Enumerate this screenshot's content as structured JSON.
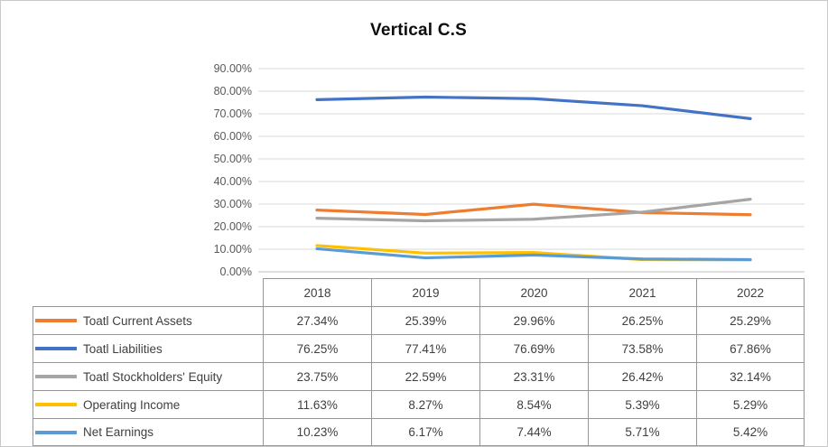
{
  "chart_data": {
    "type": "line",
    "title": "Vertical C.S",
    "categories": [
      "2018",
      "2019",
      "2020",
      "2021",
      "2022"
    ],
    "series": [
      {
        "name": "Toatl Current Assets",
        "color": "#ED7D31",
        "values": [
          27.34,
          25.39,
          29.96,
          26.25,
          25.29
        ],
        "display": [
          "27.34%",
          "25.39%",
          "29.96%",
          "26.25%",
          "25.29%"
        ]
      },
      {
        "name": "Toatl Liabilities",
        "color": "#4472C4",
        "values": [
          76.25,
          77.41,
          76.69,
          73.58,
          67.86
        ],
        "display": [
          "76.25%",
          "77.41%",
          "76.69%",
          "73.58%",
          "67.86%"
        ]
      },
      {
        "name": "Toatl Stockholders' Equity",
        "color": "#A5A5A5",
        "values": [
          23.75,
          22.59,
          23.31,
          26.42,
          32.14
        ],
        "display": [
          "23.75%",
          "22.59%",
          "23.31%",
          "26.42%",
          "32.14%"
        ]
      },
      {
        "name": "Operating Income",
        "color": "#FFC000",
        "values": [
          11.63,
          8.27,
          8.54,
          5.39,
          5.29
        ],
        "display": [
          "11.63%",
          "8.27%",
          "8.54%",
          "5.39%",
          "5.29%"
        ]
      },
      {
        "name": "Net Earnings",
        "color": "#5B9BD5",
        "values": [
          10.23,
          6.17,
          7.44,
          5.71,
          5.42
        ],
        "display": [
          "10.23%",
          "6.17%",
          "7.44%",
          "5.71%",
          "5.42%"
        ]
      }
    ],
    "y_axis": {
      "min": 0,
      "max": 90,
      "step": 10,
      "tick_labels": [
        "0.00%",
        "10.00%",
        "20.00%",
        "30.00%",
        "40.00%",
        "50.00%",
        "60.00%",
        "70.00%",
        "80.00%",
        "90.00%"
      ]
    },
    "grid": true,
    "legend_position": "table-left",
    "axis_text_color": "#595959",
    "gridline_color": "#D9D9D9",
    "axis_line_color": "#BFBFBF",
    "table_border_color": "#969696"
  }
}
